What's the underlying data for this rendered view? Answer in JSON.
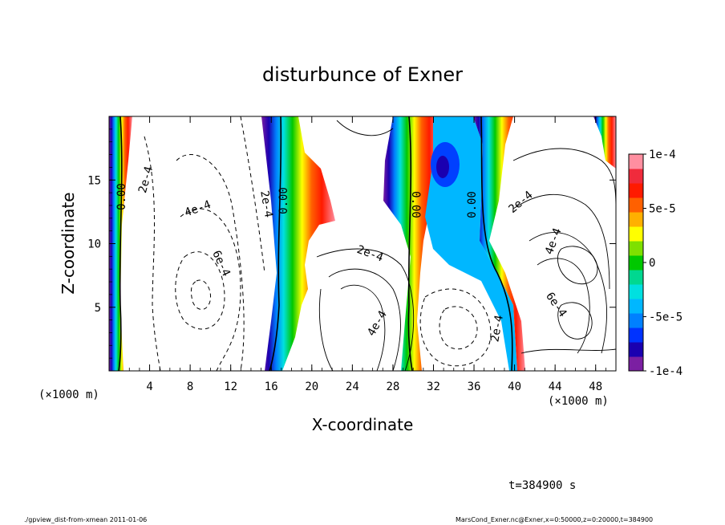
{
  "chart_data": {
    "type": "heatmap",
    "title": "disturbunce of Exner",
    "xlabel": "X-coordinate",
    "ylabel": "Z-coordinate",
    "x_unit": "(×1000 m)",
    "y_unit": "(×1000 m)",
    "xlim": [
      0,
      50
    ],
    "ylim": [
      0,
      20
    ],
    "x_ticks": [
      4,
      8,
      12,
      16,
      20,
      24,
      28,
      32,
      36,
      40,
      44,
      48
    ],
    "y_ticks": [
      5,
      10,
      15
    ],
    "colorbar": {
      "range": [
        -0.0001,
        0.0001
      ],
      "tick_labels": [
        "1e-4",
        "5e-5",
        "0",
        "-5e-5",
        "-1e-4"
      ],
      "tick_values": [
        0.0001,
        5e-05,
        0,
        -5e-05,
        -0.0001
      ],
      "colors": [
        "#7b1fa2",
        "#1a00b0",
        "#0033ff",
        "#0080ff",
        "#00b7ff",
        "#00e0e0",
        "#00d890",
        "#00c800",
        "#7ee000",
        "#ffff00",
        "#ffb000",
        "#ff6000",
        "#ff1a00",
        "#f02b3c",
        "#ff8fa0"
      ]
    },
    "contour_labels": [
      "0.00",
      "2e-4",
      "4e-4",
      "6e-4"
    ],
    "bands": [
      {
        "x_center": 1.0,
        "width": 1.5
      },
      {
        "x_center": 17.6,
        "width": 2.5
      },
      {
        "x_center": 30.5,
        "width": 5.0
      },
      {
        "x_center": 36.5,
        "width": 4.5
      },
      {
        "x_center": 49.5,
        "width": 1.5
      }
    ],
    "footer_time": "t=384900 s",
    "footer_left": "./gpview_dist-from-xmean  2011-01-06",
    "footer_right": "MarsCond_Exner.nc@Exner,x=0:50000,z=0:20000,t=384900"
  }
}
